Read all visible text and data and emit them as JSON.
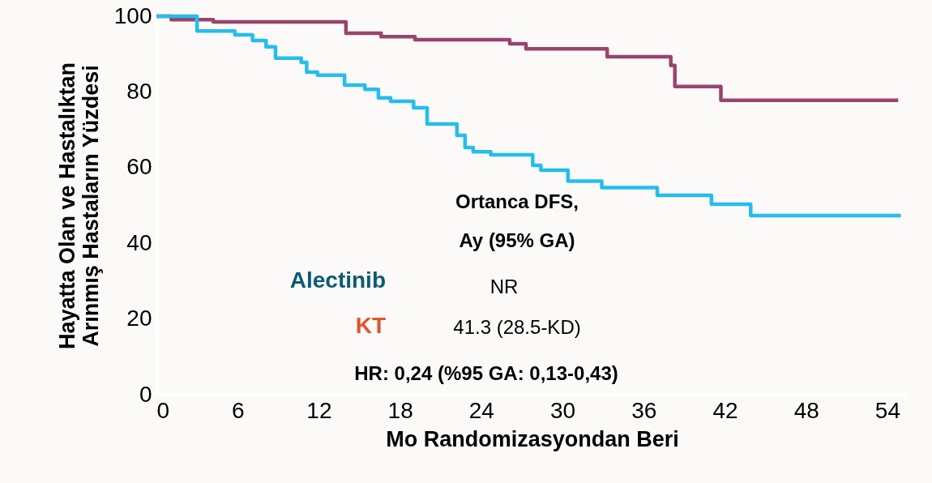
{
  "chart_data": {
    "type": "step",
    "xlabel": "Mo Randomizasyondan Beri",
    "ylabel": "Hayatta Olan ve Hastalıktan\nArınmış Hastaların Yüzdesi",
    "xlim": [
      0,
      55.5
    ],
    "ylim": [
      0,
      100
    ],
    "xticks": [
      0,
      6,
      12,
      18,
      24,
      30,
      36,
      42,
      48,
      54
    ],
    "yticks": [
      0,
      20,
      40,
      60,
      80,
      100
    ],
    "grid": false,
    "marker": "none",
    "line_style": "solid",
    "series": [
      {
        "color": "#99446c",
        "x": [
          0,
          1.1,
          4.2,
          14.0,
          16.6,
          19.1,
          26.1,
          27.3,
          33.3,
          38.0,
          38.3,
          41.7,
          54.8
        ],
        "values": [
          100,
          99.1,
          98.5,
          95.5,
          94.6,
          93.8,
          92.7,
          91.4,
          89.3,
          87,
          81.4,
          77.8,
          77.8
        ]
      },
      {
        "color": "#25bdee",
        "x": [
          0,
          3.0,
          5.8,
          7.1,
          8.1,
          8.8,
          10.7,
          11.1,
          11.9,
          13.9,
          15.4,
          16.4,
          17.3,
          19.0,
          20.0,
          22.2,
          22.8,
          23.4,
          24.7,
          27.8,
          28.4,
          30.4,
          32.9,
          37.0,
          41.0,
          43.9,
          55.0
        ],
        "values": [
          100,
          96.1,
          95.1,
          93.6,
          91.9,
          88.9,
          87.8,
          85.2,
          84.4,
          81.8,
          80.7,
          78.4,
          77.5,
          75.8,
          71.5,
          68.5,
          65.3,
          64.2,
          63.4,
          60.6,
          59.3,
          56.4,
          54.7,
          52.7,
          50.3,
          47.3,
          47.3
        ]
      }
    ],
    "annotations": [
      "Ortanca DFS,\nAy (95% GA)",
      "Alectinib",
      "NR",
      "KT",
      "41.3 (28.5-KD)",
      "HR: 0,24 (%95 GA: 0,13-0,43)"
    ]
  }
}
